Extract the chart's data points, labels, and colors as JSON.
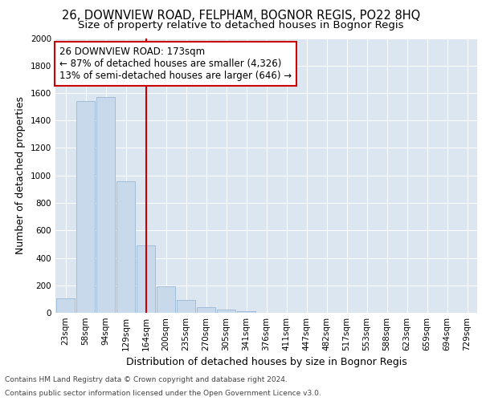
{
  "title_line1": "26, DOWNVIEW ROAD, FELPHAM, BOGNOR REGIS, PO22 8HQ",
  "title_line2": "Size of property relative to detached houses in Bognor Regis",
  "xlabel": "Distribution of detached houses by size in Bognor Regis",
  "ylabel": "Number of detached properties",
  "categories": [
    "23sqm",
    "58sqm",
    "94sqm",
    "129sqm",
    "164sqm",
    "200sqm",
    "235sqm",
    "270sqm",
    "305sqm",
    "341sqm",
    "376sqm",
    "411sqm",
    "447sqm",
    "482sqm",
    "517sqm",
    "553sqm",
    "588sqm",
    "623sqm",
    "659sqm",
    "694sqm",
    "729sqm"
  ],
  "values": [
    108,
    1540,
    1570,
    960,
    490,
    190,
    95,
    40,
    22,
    12,
    0,
    0,
    0,
    0,
    0,
    0,
    0,
    0,
    0,
    0,
    0
  ],
  "bar_color": "#c9d9ec",
  "bar_edge_color": "#9ab8d4",
  "vline_color": "#cc0000",
  "vline_index": 4.5,
  "annotation_text": "26 DOWNVIEW ROAD: 173sqm\n← 87% of detached houses are smaller (4,326)\n13% of semi-detached houses are larger (646) →",
  "annotation_box_facecolor": "#ffffff",
  "annotation_box_edgecolor": "#cc0000",
  "ylim": [
    0,
    2000
  ],
  "yticks": [
    0,
    200,
    400,
    600,
    800,
    1000,
    1200,
    1400,
    1600,
    1800,
    2000
  ],
  "plot_bg_color": "#dce6f1",
  "footer_line1": "Contains HM Land Registry data © Crown copyright and database right 2024.",
  "footer_line2": "Contains public sector information licensed under the Open Government Licence v3.0.",
  "title_fontsize": 10.5,
  "subtitle_fontsize": 9.5,
  "axis_label_fontsize": 9,
  "tick_fontsize": 7.5,
  "annotation_fontsize": 8.5,
  "footer_fontsize": 6.5
}
